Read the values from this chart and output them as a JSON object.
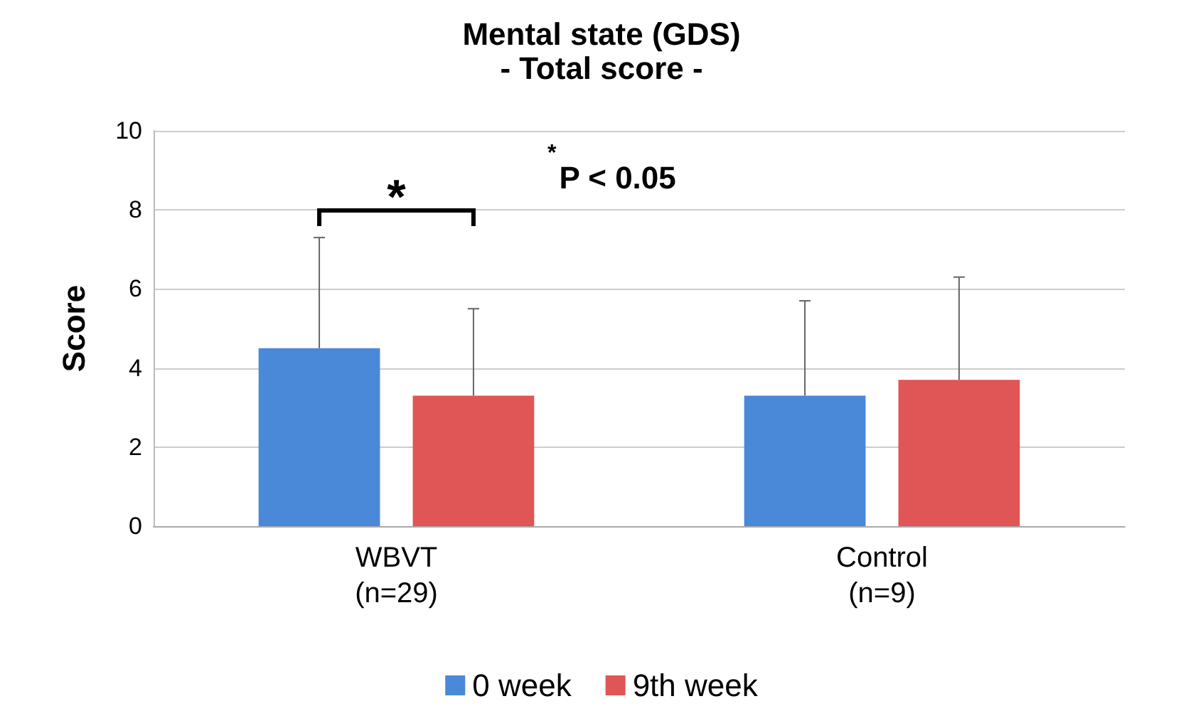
{
  "chart_data": {
    "type": "bar",
    "title": "Mental state (GDS)",
    "subtitle": "- Total score -",
    "ylabel": "Score",
    "categories": [
      "WBVT\n(n=29)",
      "Control\n(n=9)"
    ],
    "series": [
      {
        "name": "0 week",
        "color": "#4a88d8",
        "values": [
          4.5,
          3.3
        ],
        "errors": [
          2.8,
          2.4
        ]
      },
      {
        "name": "9th week",
        "color": "#e05555",
        "values": [
          3.3,
          3.7
        ],
        "errors": [
          2.2,
          2.6
        ]
      }
    ],
    "ylim": [
      0,
      10
    ],
    "yticks": [
      0,
      2,
      4,
      6,
      8,
      10
    ],
    "grid": "y",
    "legend": "bottom",
    "annotations": [
      "*",
      "$^{*}$P < 0.05"
    ]
  }
}
